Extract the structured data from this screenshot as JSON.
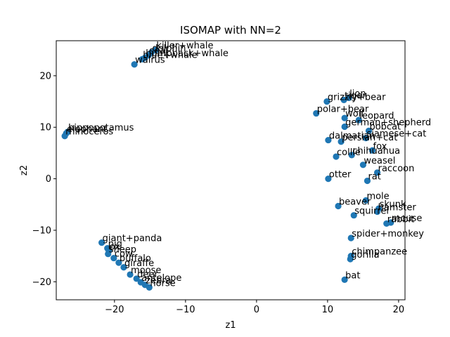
{
  "chart_data": {
    "type": "scatter",
    "title": "ISOMAP with NN=2",
    "xlabel": "z1",
    "ylabel": "z2",
    "xlim": [
      -28.2,
      20.9
    ],
    "ylim": [
      -23.5,
      26.8
    ],
    "xticks": [
      -20,
      -10,
      0,
      10,
      20
    ],
    "yticks": [
      -20,
      -10,
      0,
      10,
      20
    ],
    "grid": false,
    "marker_color": "#1f77b4",
    "points": [
      {
        "label": "killer+whale",
        "x": -14.2,
        "y": 25.0
      },
      {
        "label": "dolphin",
        "x": -14.8,
        "y": 24.5
      },
      {
        "label": "seal",
        "x": -15.2,
        "y": 24.0
      },
      {
        "label": "humpback+whale",
        "x": -15.7,
        "y": 23.5
      },
      {
        "label": "blue+whale",
        "x": -16.1,
        "y": 23.2
      },
      {
        "label": "walrus",
        "x": -17.2,
        "y": 22.2
      },
      {
        "label": "hippopotamus",
        "x": -26.6,
        "y": 9.1
      },
      {
        "label": "elephant",
        "x": -26.8,
        "y": 8.8
      },
      {
        "label": "rhinoceros",
        "x": -27.0,
        "y": 8.3
      },
      {
        "label": "lion",
        "x": 13.0,
        "y": 15.7
      },
      {
        "label": "tiger",
        "x": 12.3,
        "y": 15.3
      },
      {
        "label": "grizzly+bear",
        "x": 9.9,
        "y": 15.0
      },
      {
        "label": "polar+bear",
        "x": 8.4,
        "y": 12.7
      },
      {
        "label": "wolf",
        "x": 12.4,
        "y": 11.8
      },
      {
        "label": "leopard",
        "x": 14.4,
        "y": 11.4
      },
      {
        "label": "german+shepherd",
        "x": 12.4,
        "y": 10.1
      },
      {
        "label": "bobcat",
        "x": 15.8,
        "y": 9.3
      },
      {
        "label": "siamese+cat",
        "x": 15.4,
        "y": 7.9
      },
      {
        "label": "dalmatian",
        "x": 10.1,
        "y": 7.5
      },
      {
        "label": "persian+cat",
        "x": 11.9,
        "y": 7.2
      },
      {
        "label": "fox",
        "x": 16.3,
        "y": 5.5
      },
      {
        "label": "chihuahua",
        "x": 13.4,
        "y": 4.6
      },
      {
        "label": "collie",
        "x": 11.2,
        "y": 4.3
      },
      {
        "label": "weasel",
        "x": 15.0,
        "y": 2.7
      },
      {
        "label": "raccoon",
        "x": 17.0,
        "y": 1.2
      },
      {
        "label": "rat",
        "x": 15.6,
        "y": -0.4
      },
      {
        "label": "otter",
        "x": 10.1,
        "y": 0.0
      },
      {
        "label": "mole",
        "x": 15.4,
        "y": -4.2
      },
      {
        "label": "beaver",
        "x": 11.5,
        "y": -5.3
      },
      {
        "label": "skunk",
        "x": 17.2,
        "y": -5.8
      },
      {
        "label": "hamster",
        "x": 17.0,
        "y": -6.4
      },
      {
        "label": "squirrel",
        "x": 13.7,
        "y": -7.1
      },
      {
        "label": "rabbit",
        "x": 18.3,
        "y": -8.7
      },
      {
        "label": "mouse",
        "x": 18.9,
        "y": -8.5
      },
      {
        "label": "spider+monkey",
        "x": 13.3,
        "y": -11.5
      },
      {
        "label": "chimpanzee",
        "x": 13.3,
        "y": -15.0
      },
      {
        "label": "gorilla",
        "x": 13.2,
        "y": -15.6
      },
      {
        "label": "bat",
        "x": 12.4,
        "y": -19.6
      },
      {
        "label": "giant+panda",
        "x": -21.8,
        "y": -12.4
      },
      {
        "label": "pig",
        "x": -21.0,
        "y": -13.5
      },
      {
        "label": "ox",
        "x": -20.8,
        "y": -14.0
      },
      {
        "label": "sheep",
        "x": -20.9,
        "y": -14.6
      },
      {
        "label": "cow",
        "x": -20.1,
        "y": -15.4
      },
      {
        "label": "buffalo",
        "x": -19.4,
        "y": -16.3
      },
      {
        "label": "giraffe",
        "x": -18.7,
        "y": -17.2
      },
      {
        "label": "moose",
        "x": -17.8,
        "y": -18.6
      },
      {
        "label": "deer",
        "x": -16.9,
        "y": -19.4
      },
      {
        "label": "antelope",
        "x": -16.3,
        "y": -20.1
      },
      {
        "label": "zebra",
        "x": -15.7,
        "y": -20.6
      },
      {
        "label": "horse",
        "x": -15.1,
        "y": -21.1
      }
    ]
  }
}
